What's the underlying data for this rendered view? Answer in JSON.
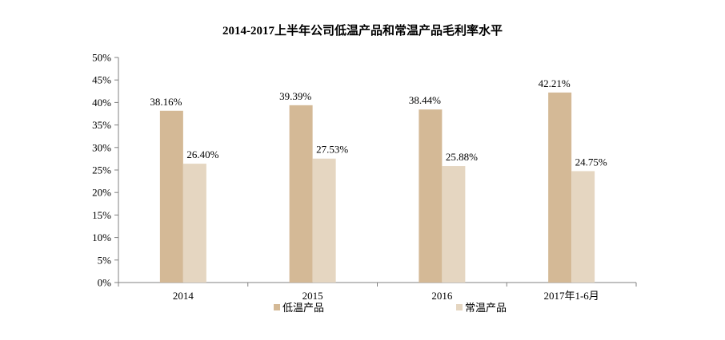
{
  "chart_data": {
    "type": "bar",
    "title": "2014-2017上半年公司低温产品和常温产品毛利率水平",
    "xlabel": "",
    "ylabel": "",
    "categories": [
      "2014",
      "2015",
      "2016",
      "2017年1-6月"
    ],
    "series": [
      {
        "name": "低温产品",
        "values": [
          38.16,
          39.39,
          38.44,
          42.21
        ],
        "labels": [
          "38.16%",
          "39.39%",
          "38.44%",
          "42.21%"
        ],
        "color": "#d4b996"
      },
      {
        "name": "常温产品",
        "values": [
          26.4,
          27.53,
          25.88,
          24.75
        ],
        "labels": [
          "26.40%",
          "27.53%",
          "25.88%",
          "24.75%"
        ],
        "color": "#e5d6c1"
      }
    ],
    "ylim": [
      0,
      50
    ],
    "yticks": [
      0,
      5,
      10,
      15,
      20,
      25,
      30,
      35,
      40,
      45,
      50
    ],
    "ytick_labels": [
      "0%",
      "5%",
      "10%",
      "15%",
      "20%",
      "25%",
      "30%",
      "35%",
      "40%",
      "45%",
      "50%"
    ],
    "grid": false,
    "legend_position": "bottom"
  }
}
